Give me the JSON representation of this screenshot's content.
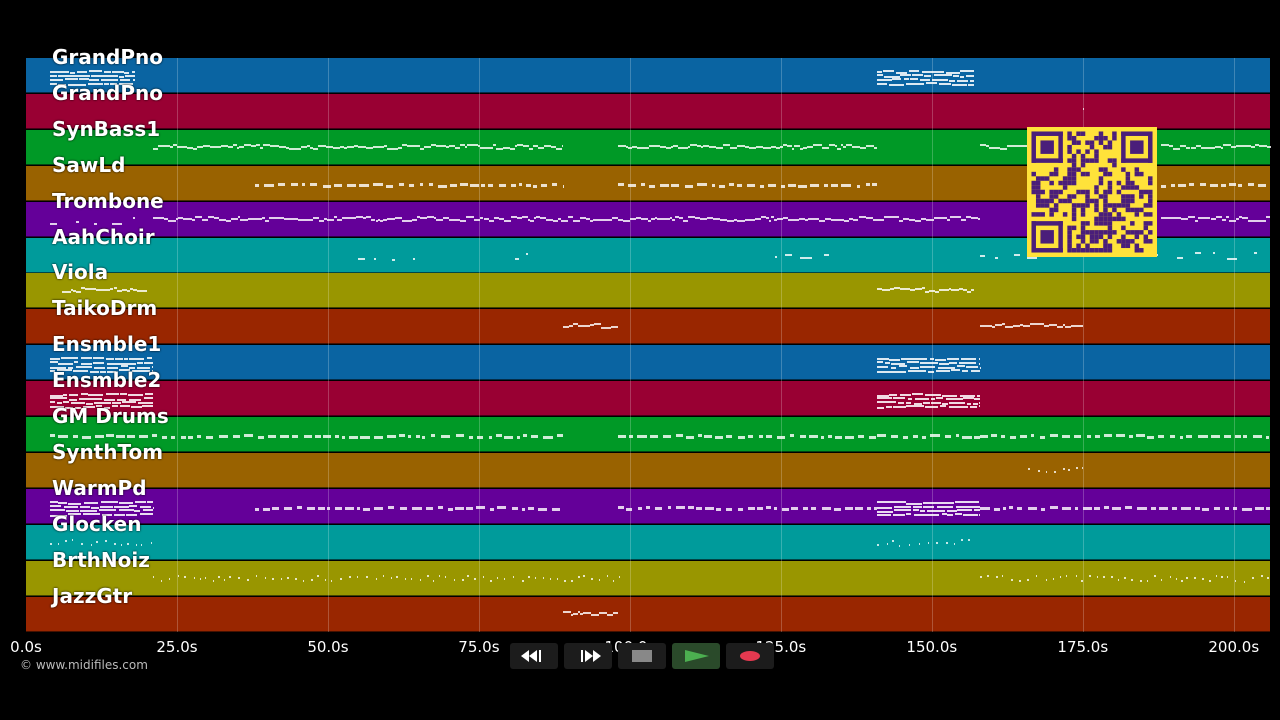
{
  "tracks": [
    {
      "name": "GrandPno",
      "color": "#0a64a2"
    },
    {
      "name": "GrandPno",
      "color": "#990033"
    },
    {
      "name": "SynBass1",
      "color": "#009926"
    },
    {
      "name": "SawLd",
      "color": "#996200"
    },
    {
      "name": "Trombone",
      "color": "#640099"
    },
    {
      "name": "AahChoir",
      "color": "#009b9b"
    },
    {
      "name": "Viola",
      "color": "#999600"
    },
    {
      "name": "TaikoDrm",
      "color": "#992600"
    },
    {
      "name": "Ensmble1",
      "color": "#0a64a2"
    },
    {
      "name": "Ensmble2",
      "color": "#990033"
    },
    {
      "name": "GM Drums",
      "color": "#009926"
    },
    {
      "name": "SynthTom",
      "color": "#996200"
    },
    {
      "name": "WarmPd",
      "color": "#640099"
    },
    {
      "name": "Glocken",
      "color": "#009b9b"
    },
    {
      "name": "BrthNoiz",
      "color": "#999600"
    },
    {
      "name": "JazzGtr",
      "color": "#992600"
    }
  ],
  "timeline": {
    "ticks": [
      "0.0s",
      "25.0s",
      "50.0s",
      "75.0s",
      "100.0s",
      "125.0s",
      "150.0s",
      "175.0s",
      "200.0s"
    ],
    "max_seconds": 206
  },
  "copyright": "© www.midifiles.com",
  "controls": [
    {
      "name": "rewind-icon"
    },
    {
      "name": "fast-forward-icon"
    },
    {
      "name": "stop-icon"
    },
    {
      "name": "play-icon",
      "accent": "#4caf50"
    },
    {
      "name": "record-icon",
      "accent": "#e53950"
    }
  ],
  "notes": [
    [
      [
        4,
        18,
        "dense"
      ],
      [
        141,
        157,
        "dense"
      ]
    ],
    [
      [
        175,
        175.3,
        "dot"
      ]
    ],
    [
      [
        21,
        89,
        "line"
      ],
      [
        98,
        141,
        "line"
      ],
      [
        158,
        166,
        "line"
      ],
      [
        188,
        206,
        "line"
      ]
    ],
    [
      [
        38,
        89,
        "dash"
      ],
      [
        98,
        141,
        "dash"
      ],
      [
        188,
        206,
        "dash"
      ]
    ],
    [
      [
        4,
        18,
        "sparse"
      ],
      [
        21,
        158,
        "line"
      ],
      [
        188,
        206,
        "line"
      ]
    ],
    [
      [
        55,
        65,
        "sparse"
      ],
      [
        81,
        86,
        "sparse"
      ],
      [
        124,
        133,
        "sparse"
      ],
      [
        158,
        168,
        "sparse"
      ],
      [
        186,
        206,
        "sparse"
      ]
    ],
    [
      [
        6,
        20,
        "line"
      ],
      [
        141,
        157,
        "line"
      ]
    ],
    [
      [
        89,
        98,
        "line"
      ],
      [
        158,
        175,
        "line"
      ]
    ],
    [
      [
        4,
        21,
        "dense"
      ],
      [
        141,
        158,
        "dense"
      ]
    ],
    [
      [
        4,
        21,
        "dense"
      ],
      [
        141,
        158,
        "dense"
      ]
    ],
    [
      [
        4,
        21,
        "dash"
      ],
      [
        21,
        89,
        "dash"
      ],
      [
        98,
        141,
        "dash"
      ],
      [
        141,
        158,
        "dash"
      ],
      [
        158,
        206,
        "dash"
      ]
    ],
    [
      [
        166,
        175,
        "dot"
      ]
    ],
    [
      [
        4,
        21,
        "dense"
      ],
      [
        38,
        89,
        "dash"
      ],
      [
        98,
        141,
        "dash"
      ],
      [
        141,
        158,
        "dense"
      ],
      [
        158,
        206,
        "dash"
      ]
    ],
    [
      [
        4,
        21,
        "dot"
      ],
      [
        141,
        157,
        "dot"
      ]
    ],
    [
      [
        21,
        99,
        "dot"
      ],
      [
        158,
        206,
        "dot"
      ]
    ],
    [
      [
        89,
        98,
        "line"
      ]
    ]
  ]
}
